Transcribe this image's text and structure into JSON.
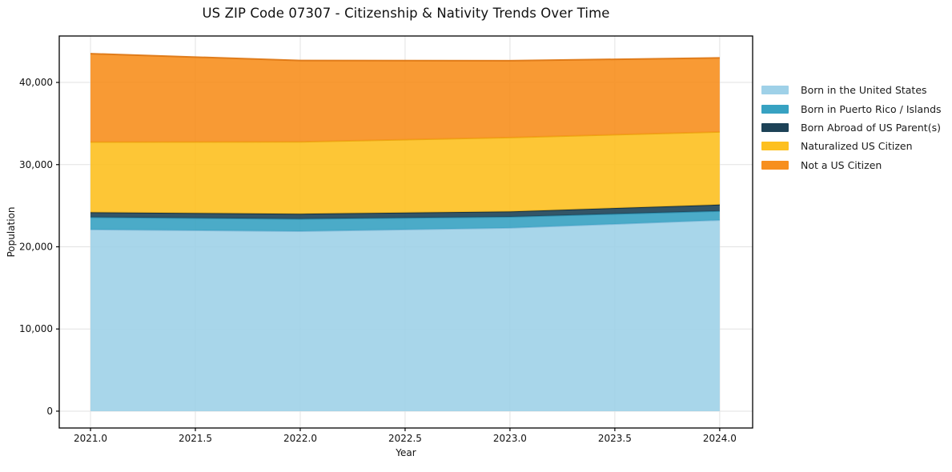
{
  "title": "US ZIP Code 07307 - Citizenship & Nativity Trends Over Time",
  "axes": {
    "x_label": "Year",
    "y_label": "Population",
    "x_ticks": [
      {
        "value": 2021.0,
        "label": "2021.0"
      },
      {
        "value": 2021.5,
        "label": "2021.5"
      },
      {
        "value": 2022.0,
        "label": "2022.0"
      },
      {
        "value": 2022.5,
        "label": "2022.5"
      },
      {
        "value": 2023.0,
        "label": "2023.0"
      },
      {
        "value": 2023.5,
        "label": "2023.5"
      },
      {
        "value": 2024.0,
        "label": "2024.0"
      }
    ],
    "y_ticks": [
      {
        "value": 0,
        "label": "0"
      },
      {
        "value": 10000,
        "label": "10,000"
      },
      {
        "value": 20000,
        "label": "20,000"
      },
      {
        "value": 30000,
        "label": "30,000"
      },
      {
        "value": 40000,
        "label": "40,000"
      }
    ]
  },
  "colors": {
    "background": "#ffffff",
    "grid": "#e2e2e2",
    "spine": "#000000",
    "text": "#111111"
  },
  "chart_data": {
    "type": "area",
    "stacked": true,
    "title": "US ZIP Code 07307 - Citizenship & Nativity Trends Over Time",
    "xlabel": "Year",
    "ylabel": "Population",
    "x": [
      2021,
      2022,
      2023,
      2024
    ],
    "series": [
      {
        "name": "Born in the United States",
        "color": "#9fd1e8",
        "edge": "#7db9d8",
        "values": [
          22100,
          21900,
          22300,
          23250
        ]
      },
      {
        "name": "Born in Puerto Rico / Islands",
        "color": "#37a2c2",
        "edge": "#2a8aa8",
        "values": [
          1500,
          1500,
          1350,
          1100
        ]
      },
      {
        "name": "Born Abroad of US Parent(s)",
        "color": "#1d4257",
        "edge": "#122c3c",
        "values": [
          600,
          620,
          650,
          780
        ]
      },
      {
        "name": "Naturalized US Citizen",
        "color": "#fdc020",
        "edge": "#eaa50c",
        "values": [
          8550,
          8750,
          9000,
          8850
        ]
      },
      {
        "name": "Not a US Citizen",
        "color": "#f78f1e",
        "edge": "#dd7410",
        "values": [
          10750,
          9900,
          9350,
          9000
        ]
      }
    ],
    "totals": [
      43500,
      42670,
      42650,
      42980
    ],
    "xlim": [
      2020.851,
      2024.157
    ],
    "ylim": [
      -2050,
      45650
    ],
    "grid": true,
    "legend_position": "right-outside",
    "fill_opacity": 0.9
  }
}
